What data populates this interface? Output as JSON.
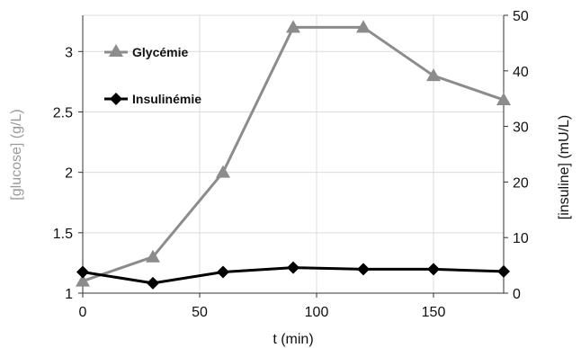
{
  "chart_data": {
    "type": "line",
    "xlabel": "t (min)",
    "ylabel_left": "[glucose] (g/L)",
    "ylabel_right": "[insuline] (mU/L)",
    "xlim": [
      0,
      180
    ],
    "ylim_left": [
      1,
      3.3
    ],
    "ylim_right": [
      0,
      50
    ],
    "x_ticks": [
      0,
      50,
      100,
      150
    ],
    "y_left_ticks": [
      1,
      1.5,
      2,
      2.5,
      3
    ],
    "y_right_ticks": [
      0,
      10,
      20,
      30,
      40,
      50
    ],
    "grid": true,
    "legend_placement": "top-left",
    "series": [
      {
        "name": "Glycémie",
        "axis": "left",
        "color": "#8c8c8c",
        "marker": "triangle",
        "x": [
          0,
          30,
          60,
          90,
          120,
          150,
          180
        ],
        "y": [
          1.1,
          1.3,
          2.0,
          3.2,
          3.2,
          2.8,
          2.6
        ]
      },
      {
        "name": "Insulinémie",
        "axis": "right",
        "color": "#000000",
        "marker": "diamond",
        "x": [
          0,
          30,
          60,
          90,
          120,
          150,
          180
        ],
        "y": [
          3.8,
          1.8,
          3.8,
          4.6,
          4.3,
          4.3,
          3.9
        ]
      }
    ]
  },
  "colors": {
    "grid": "#dcdcdc",
    "axis_left_title": "#9a9a9a",
    "axis_right_title": "#111111"
  }
}
